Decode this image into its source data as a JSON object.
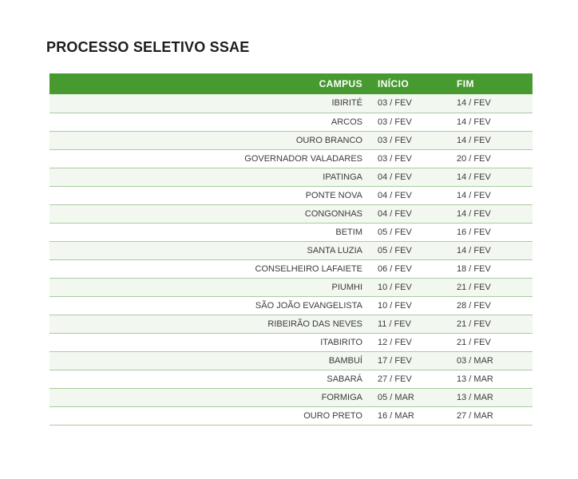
{
  "page": {
    "title": "PROCESSO SELETIVO SSAE"
  },
  "table": {
    "columns": [
      {
        "key": "campus",
        "label": "CAMPUS"
      },
      {
        "key": "inicio",
        "label": "INÍCIO"
      },
      {
        "key": "fim",
        "label": "FIM"
      }
    ],
    "rows": [
      {
        "campus": "IBIRITÉ",
        "inicio": "03 / FEV",
        "fim": "14 / FEV"
      },
      {
        "campus": "ARCOS",
        "inicio": "03 / FEV",
        "fim": "14 / FEV"
      },
      {
        "campus": "OURO BRANCO",
        "inicio": "03 / FEV",
        "fim": "14 / FEV"
      },
      {
        "campus": "GOVERNADOR VALADARES",
        "inicio": "03 / FEV",
        "fim": "20 / FEV"
      },
      {
        "campus": "IPATINGA",
        "inicio": "04 / FEV",
        "fim": "14 / FEV"
      },
      {
        "campus": "PONTE NOVA",
        "inicio": "04 / FEV",
        "fim": "14 / FEV"
      },
      {
        "campus": "CONGONHAS",
        "inicio": "04 / FEV",
        "fim": "14 / FEV"
      },
      {
        "campus": "BETIM",
        "inicio": "05 / FEV",
        "fim": "16 / FEV"
      },
      {
        "campus": "SANTA LUZIA",
        "inicio": "05 / FEV",
        "fim": "14 / FEV"
      },
      {
        "campus": "CONSELHEIRO LAFAIETE",
        "inicio": "06 / FEV",
        "fim": "18 / FEV"
      },
      {
        "campus": "PIUMHI",
        "inicio": "10 / FEV",
        "fim": "21 / FEV"
      },
      {
        "campus": "SÃO JOÃO EVANGELISTA",
        "inicio": "10 / FEV",
        "fim": "28 / FEV"
      },
      {
        "campus": "RIBEIRÃO DAS NEVES",
        "inicio": "11 / FEV",
        "fim": "21 / FEV"
      },
      {
        "campus": "ITABIRITO",
        "inicio": "12 / FEV",
        "fim": "21 / FEV"
      },
      {
        "campus": "BAMBUÍ",
        "inicio": "17 / FEV",
        "fim": "03 / MAR"
      },
      {
        "campus": "SABARÁ",
        "inicio": "27 / FEV",
        "fim": "13 / MAR"
      },
      {
        "campus": "FORMIGA",
        "inicio": "05 / MAR",
        "fim": "13 / MAR"
      },
      {
        "campus": "OURO PRETO",
        "inicio": "16 / MAR",
        "fim": "27 / MAR"
      }
    ]
  },
  "colors": {
    "title-text": "#1d1d1d",
    "header-bg": "#479a30",
    "header-text": "#ffffff",
    "row-alt-bg": "#f2f7ef",
    "row-bg": "#ffffff",
    "row-border": "#a9cba2",
    "body-text": "#3c3c3c"
  }
}
